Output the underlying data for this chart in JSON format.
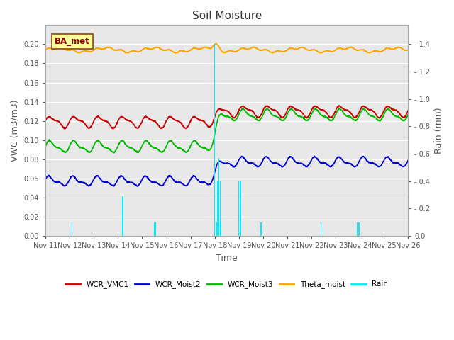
{
  "title": "Soil Moisture",
  "xlabel": "Time",
  "ylabel_left": "VWC (m3/m3)",
  "ylabel_right": "Rain (mm)",
  "ylim_left": [
    0.0,
    0.22
  ],
  "ylim_right": [
    0.0,
    1.54
  ],
  "yticks_left": [
    0.0,
    0.02,
    0.04,
    0.06,
    0.08,
    0.1,
    0.12,
    0.14,
    0.16,
    0.18,
    0.2
  ],
  "yticks_right_vals": [
    0.0,
    0.2,
    0.4,
    0.6,
    0.8,
    1.0,
    1.2,
    1.4
  ],
  "xtick_labels": [
    "Nov 11",
    "Nov 12",
    "Nov 13",
    "Nov 14",
    "Nov 15",
    "Nov 16",
    "Nov 17",
    "Nov 18",
    "Nov 19",
    "Nov 20",
    "Nov 21",
    "Nov 22",
    "Nov 23",
    "Nov 24",
    "Nov 25",
    "Nov 26"
  ],
  "annotation_text": "BA_met",
  "legend_colors": {
    "WCR_VMC1": "#cc0000",
    "WCR_Moist2": "#0000cc",
    "WCR_Moist3": "#00bb00",
    "Theta_moist": "#ffa500",
    "Rain": "#00eeff"
  },
  "bg_color": "#e8e8e8",
  "grid_color": "#ffffff",
  "line_width": 1.2,
  "tick_label_color": "#555555",
  "axis_label_color": "#555555",
  "title_color": "#333333"
}
